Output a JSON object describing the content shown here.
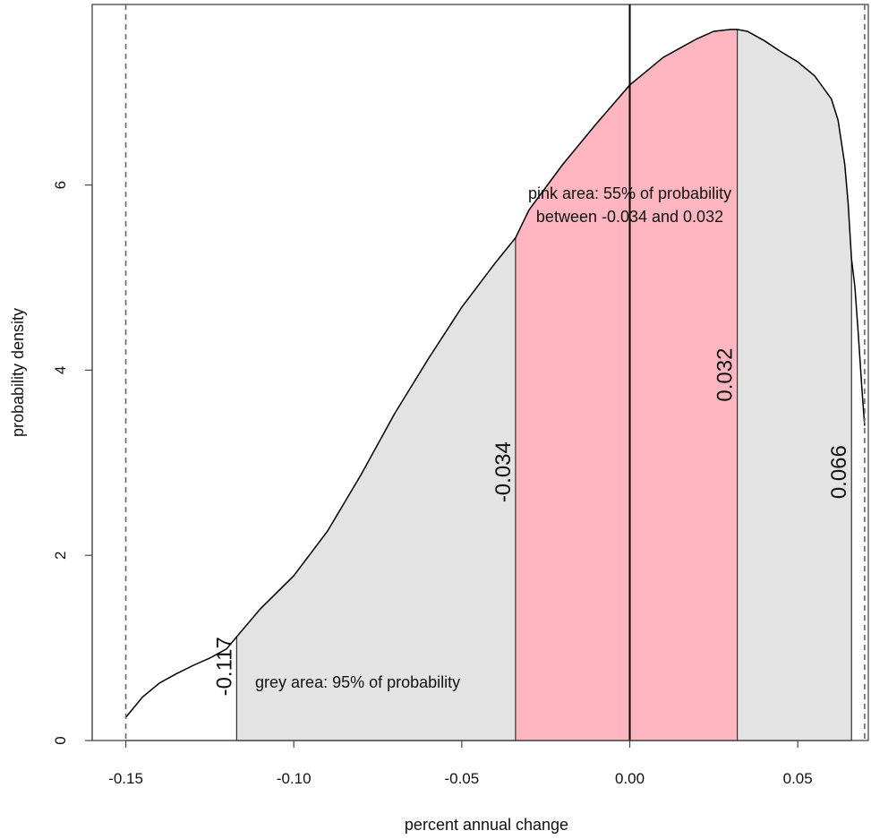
{
  "chart_data": {
    "type": "area",
    "xlabel": "percent annual change",
    "ylabel": "probability density",
    "xlim": [
      -0.16,
      0.071
    ],
    "ylim": [
      0,
      7.95
    ],
    "xticks": [
      -0.15,
      -0.1,
      -0.05,
      0.0,
      0.05
    ],
    "xtick_labels": [
      "-0.15",
      "-0.10",
      "-0.05",
      "0.00",
      "0.05"
    ],
    "yticks": [
      0,
      2,
      4,
      6
    ],
    "ytick_labels": [
      "0",
      "2",
      "4",
      "6"
    ],
    "density_curve": {
      "x": [
        -0.15,
        -0.145,
        -0.14,
        -0.135,
        -0.13,
        -0.125,
        -0.12,
        -0.117,
        -0.11,
        -0.1,
        -0.09,
        -0.08,
        -0.07,
        -0.06,
        -0.05,
        -0.04,
        -0.034,
        -0.03,
        -0.02,
        -0.01,
        0.0,
        0.01,
        0.02,
        0.025,
        0.03,
        0.032,
        0.035,
        0.04,
        0.045,
        0.05,
        0.055,
        0.06,
        0.062,
        0.064,
        0.065,
        0.066,
        0.067,
        0.068,
        0.069,
        0.0699
      ],
      "y": [
        0.25,
        0.47,
        0.62,
        0.72,
        0.81,
        0.89,
        0.99,
        1.12,
        1.42,
        1.78,
        2.26,
        2.87,
        3.53,
        4.12,
        4.68,
        5.16,
        5.43,
        5.73,
        6.22,
        6.66,
        7.08,
        7.38,
        7.58,
        7.66,
        7.68,
        7.68,
        7.66,
        7.56,
        7.44,
        7.33,
        7.18,
        6.93,
        6.7,
        6.22,
        5.8,
        5.2,
        4.9,
        4.4,
        3.85,
        3.4
      ]
    },
    "shaded_regions": [
      {
        "name": "grey area",
        "from": -0.117,
        "to": 0.066,
        "probability": "95%",
        "color": "#e3e3e3"
      },
      {
        "name": "pink area",
        "from": -0.034,
        "to": 0.032,
        "probability": "55%",
        "color": "#ffb6c1"
      }
    ],
    "vertical_lines": [
      {
        "x": -0.117,
        "label": "-0.117",
        "label_y": 0.8
      },
      {
        "x": -0.034,
        "label": "-0.034",
        "label_y": 2.9
      },
      {
        "x": 0.032,
        "label": "0.032",
        "label_y": 3.95
      },
      {
        "x": 0.066,
        "label": "0.066",
        "label_y": 2.9
      }
    ],
    "reference_lines": [
      {
        "x": 0.0,
        "style": "solid"
      },
      {
        "x": -0.15,
        "style": "dashed"
      },
      {
        "x": 0.0699,
        "style": "dashed"
      }
    ],
    "annotations": [
      {
        "text": "pink area: 55% of probability",
        "x": 0.0,
        "y": 5.85,
        "anchor": "middle"
      },
      {
        "text": "between -0.034 and 0.032",
        "x": 0.0,
        "y": 5.6,
        "anchor": "middle"
      },
      {
        "text": "grey area: 95% of probability",
        "x": -0.1115,
        "y": 0.57,
        "anchor": "start"
      }
    ],
    "colors": {
      "grey_fill": "#e3e3e3",
      "pink_fill": "#ffb6c1",
      "curve": "#000000",
      "dashed": "#666666"
    }
  }
}
